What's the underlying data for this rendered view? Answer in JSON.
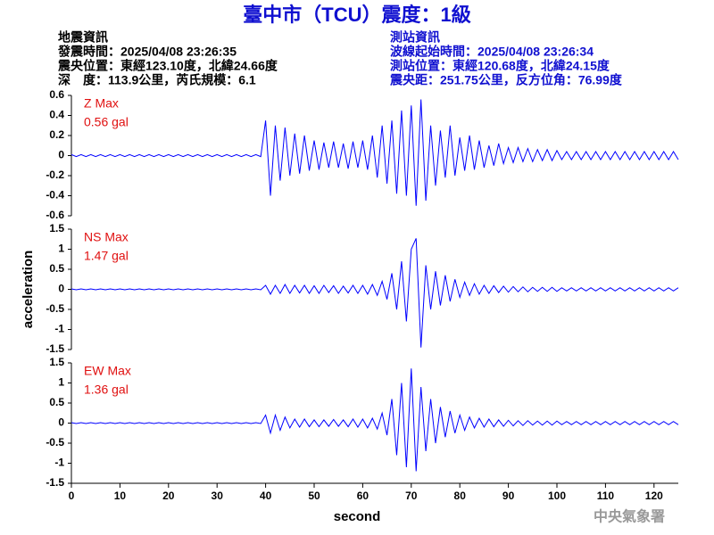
{
  "header": {
    "title": "臺中市（TCU）震度：1級",
    "left": [
      "地震資訊",
      "發震時間：2025/04/08 23:26:35",
      "震央位置：東經123.10度，北緯24.66度",
      "深　度：113.9公里，芮氏規模：6.1"
    ],
    "right": [
      "測站資訊",
      "波線起始時間：2025/04/08 23:26:34",
      "測站位置：東經120.68度，北緯24.15度",
      "震央距：251.75公里，反方位角：76.99度"
    ]
  },
  "footer": "中央氣象署",
  "chart_data": [
    {
      "type": "line",
      "annotation": "0.56 gal",
      "xlim": [
        0,
        125
      ],
      "ylim": [
        -0.6,
        0.6
      ],
      "yticks": [
        -0.6,
        -0.4,
        -0.2,
        0,
        0.2,
        0.4,
        0.6
      ],
      "x": [
        0,
        1,
        2,
        3,
        4,
        5,
        6,
        7,
        8,
        9,
        10,
        11,
        12,
        13,
        14,
        15,
        16,
        17,
        18,
        19,
        20,
        21,
        22,
        23,
        24,
        25,
        26,
        27,
        28,
        29,
        30,
        31,
        32,
        33,
        34,
        35,
        36,
        37,
        38,
        39,
        40,
        41,
        42,
        43,
        44,
        45,
        46,
        47,
        48,
        49,
        50,
        51,
        52,
        53,
        54,
        55,
        56,
        57,
        58,
        59,
        60,
        61,
        62,
        63,
        64,
        65,
        66,
        67,
        68,
        69,
        70,
        71,
        72,
        73,
        74,
        75,
        76,
        77,
        78,
        79,
        80,
        81,
        82,
        83,
        84,
        85,
        86,
        87,
        88,
        89,
        90,
        91,
        92,
        93,
        94,
        95,
        96,
        97,
        98,
        99,
        100,
        101,
        102,
        103,
        104,
        105,
        106,
        107,
        108,
        109,
        110,
        111,
        112,
        113,
        114,
        115,
        116,
        117,
        118,
        119,
        120,
        121,
        122,
        123,
        124,
        125
      ],
      "series": [
        {
          "name": "Z Max",
          "color": "#0000ff",
          "values": [
            0.01,
            -0.01,
            0.01,
            -0.01,
            0.01,
            -0.01,
            0.01,
            -0.01,
            0.01,
            -0.01,
            0.01,
            -0.01,
            0.01,
            -0.01,
            0.01,
            -0.01,
            0.01,
            -0.01,
            0.01,
            -0.01,
            0.01,
            -0.01,
            0.01,
            -0.01,
            0.01,
            -0.01,
            0.01,
            -0.01,
            0.01,
            -0.01,
            0.01,
            -0.01,
            0.01,
            -0.01,
            0.01,
            -0.01,
            0.01,
            -0.01,
            0.01,
            -0.01,
            0.35,
            -0.4,
            0.3,
            -0.25,
            0.28,
            -0.2,
            0.22,
            -0.18,
            0.2,
            -0.15,
            0.15,
            -0.14,
            0.13,
            -0.12,
            0.14,
            -0.12,
            0.12,
            -0.13,
            0.14,
            -0.12,
            0.15,
            -0.14,
            0.2,
            -0.22,
            0.3,
            -0.28,
            0.35,
            -0.38,
            0.45,
            -0.4,
            0.5,
            -0.5,
            0.56,
            -0.45,
            0.3,
            -0.3,
            0.25,
            -0.22,
            0.3,
            -0.2,
            0.18,
            -0.15,
            0.2,
            -0.14,
            0.15,
            -0.12,
            0.1,
            -0.1,
            0.12,
            -0.08,
            0.08,
            -0.07,
            0.08,
            -0.06,
            0.07,
            -0.06,
            0.06,
            -0.05,
            0.06,
            -0.05,
            0.05,
            -0.04,
            0.04,
            -0.04,
            0.04,
            -0.04,
            0.04,
            -0.04,
            0.04,
            -0.04,
            0.04,
            -0.04,
            0.04,
            -0.04,
            0.04,
            -0.04,
            0.04,
            -0.04,
            0.04,
            -0.04,
            0.04,
            -0.04,
            0.04,
            -0.04,
            0.04,
            -0.04
          ]
        }
      ]
    },
    {
      "type": "line",
      "annotation": "1.47 gal",
      "ylabel": "acceleration",
      "xlim": [
        0,
        125
      ],
      "ylim": [
        -1.5,
        1.5
      ],
      "yticks": [
        -1.5,
        -1,
        -0.5,
        0,
        0.5,
        1,
        1.5
      ],
      "x": [
        0,
        1,
        2,
        3,
        4,
        5,
        6,
        7,
        8,
        9,
        10,
        11,
        12,
        13,
        14,
        15,
        16,
        17,
        18,
        19,
        20,
        21,
        22,
        23,
        24,
        25,
        26,
        27,
        28,
        29,
        30,
        31,
        32,
        33,
        34,
        35,
        36,
        37,
        38,
        39,
        40,
        41,
        42,
        43,
        44,
        45,
        46,
        47,
        48,
        49,
        50,
        51,
        52,
        53,
        54,
        55,
        56,
        57,
        58,
        59,
        60,
        61,
        62,
        63,
        64,
        65,
        66,
        67,
        68,
        69,
        70,
        71,
        72,
        73,
        74,
        75,
        76,
        77,
        78,
        79,
        80,
        81,
        82,
        83,
        84,
        85,
        86,
        87,
        88,
        89,
        90,
        91,
        92,
        93,
        94,
        95,
        96,
        97,
        98,
        99,
        100,
        101,
        102,
        103,
        104,
        105,
        106,
        107,
        108,
        109,
        110,
        111,
        112,
        113,
        114,
        115,
        116,
        117,
        118,
        119,
        120,
        121,
        122,
        123,
        124,
        125
      ],
      "series": [
        {
          "name": "NS Max",
          "color": "#0000ff",
          "values": [
            0.01,
            -0.01,
            0.01,
            -0.01,
            0.01,
            -0.01,
            0.01,
            -0.01,
            0.01,
            -0.01,
            0.01,
            -0.01,
            0.01,
            -0.01,
            0.01,
            -0.01,
            0.01,
            -0.01,
            0.01,
            -0.01,
            0.01,
            -0.01,
            0.01,
            -0.01,
            0.01,
            -0.01,
            0.01,
            -0.01,
            0.01,
            -0.01,
            0.01,
            -0.01,
            0.01,
            -0.01,
            0.01,
            -0.01,
            0.01,
            -0.01,
            0.01,
            -0.01,
            0.1,
            -0.12,
            0.1,
            -0.1,
            0.12,
            -0.1,
            0.1,
            -0.09,
            0.1,
            -0.1,
            0.09,
            -0.1,
            0.1,
            -0.08,
            0.09,
            -0.1,
            0.08,
            -0.09,
            0.1,
            -0.1,
            0.1,
            -0.12,
            0.12,
            -0.15,
            0.2,
            -0.25,
            0.4,
            -0.5,
            0.7,
            -0.8,
            1.0,
            1.27,
            -1.45,
            0.6,
            -0.5,
            0.45,
            -0.4,
            0.35,
            -0.3,
            0.25,
            -0.2,
            0.18,
            -0.15,
            0.14,
            -0.12,
            0.1,
            -0.1,
            0.09,
            -0.08,
            0.08,
            -0.07,
            0.07,
            -0.06,
            0.06,
            -0.06,
            0.05,
            -0.05,
            0.05,
            -0.05,
            0.05,
            -0.05,
            0.04,
            -0.04,
            0.04,
            -0.04,
            0.04,
            -0.04,
            0.04,
            -0.04,
            0.04,
            -0.04,
            0.04,
            -0.04,
            0.04,
            -0.04,
            0.04,
            -0.04,
            0.04,
            -0.04,
            0.04,
            -0.04,
            0.04,
            -0.04,
            0.04,
            -0.04,
            0.04
          ]
        }
      ]
    },
    {
      "type": "line",
      "annotation": "1.36 gal",
      "xlabel": "second",
      "xlim": [
        0,
        125
      ],
      "xticks": [
        0,
        10,
        20,
        30,
        40,
        50,
        60,
        70,
        80,
        90,
        100,
        110,
        120
      ],
      "ylim": [
        -1.5,
        1.5
      ],
      "yticks": [
        -1.5,
        -1,
        -0.5,
        0,
        0.5,
        1,
        1.5
      ],
      "x": [
        0,
        1,
        2,
        3,
        4,
        5,
        6,
        7,
        8,
        9,
        10,
        11,
        12,
        13,
        14,
        15,
        16,
        17,
        18,
        19,
        20,
        21,
        22,
        23,
        24,
        25,
        26,
        27,
        28,
        29,
        30,
        31,
        32,
        33,
        34,
        35,
        36,
        37,
        38,
        39,
        40,
        41,
        42,
        43,
        44,
        45,
        46,
        47,
        48,
        49,
        50,
        51,
        52,
        53,
        54,
        55,
        56,
        57,
        58,
        59,
        60,
        61,
        62,
        63,
        64,
        65,
        66,
        67,
        68,
        69,
        70,
        71,
        72,
        73,
        74,
        75,
        76,
        77,
        78,
        79,
        80,
        81,
        82,
        83,
        84,
        85,
        86,
        87,
        88,
        89,
        90,
        91,
        92,
        93,
        94,
        95,
        96,
        97,
        98,
        99,
        100,
        101,
        102,
        103,
        104,
        105,
        106,
        107,
        108,
        109,
        110,
        111,
        112,
        113,
        114,
        115,
        116,
        117,
        118,
        119,
        120,
        121,
        122,
        123,
        124,
        125
      ],
      "series": [
        {
          "name": "EW Max",
          "color": "#0000ff",
          "values": [
            0.01,
            -0.01,
            0.01,
            -0.01,
            0.01,
            -0.01,
            0.01,
            -0.01,
            0.01,
            -0.01,
            0.01,
            -0.01,
            0.01,
            -0.01,
            0.01,
            -0.01,
            0.01,
            -0.01,
            0.01,
            -0.01,
            0.01,
            -0.01,
            0.01,
            -0.01,
            0.01,
            -0.01,
            0.01,
            -0.01,
            0.01,
            -0.01,
            0.01,
            -0.01,
            0.01,
            -0.01,
            0.01,
            -0.01,
            0.01,
            -0.01,
            0.01,
            -0.01,
            0.2,
            -0.25,
            0.2,
            -0.18,
            0.15,
            -0.12,
            0.1,
            -0.1,
            0.1,
            -0.09,
            0.08,
            -0.09,
            0.08,
            -0.08,
            0.09,
            -0.08,
            0.08,
            -0.09,
            0.1,
            -0.1,
            0.1,
            -0.12,
            0.12,
            -0.15,
            0.25,
            -0.3,
            0.6,
            -0.8,
            1.0,
            -1.1,
            1.36,
            -1.2,
            0.9,
            -0.7,
            0.6,
            -0.5,
            0.4,
            -0.35,
            0.3,
            -0.25,
            0.2,
            -0.18,
            0.15,
            -0.12,
            0.12,
            -0.1,
            0.1,
            -0.09,
            0.08,
            -0.08,
            0.07,
            -0.07,
            0.06,
            -0.06,
            0.06,
            -0.05,
            0.05,
            -0.05,
            0.05,
            -0.05,
            0.05,
            -0.04,
            0.04,
            -0.04,
            0.04,
            -0.04,
            0.04,
            -0.04,
            0.04,
            -0.04,
            0.04,
            -0.04,
            0.04,
            -0.04,
            0.04,
            -0.04,
            0.04,
            -0.04,
            0.04,
            -0.04,
            0.04,
            -0.04,
            0.04,
            -0.04,
            0.04,
            -0.04
          ]
        }
      ]
    }
  ]
}
